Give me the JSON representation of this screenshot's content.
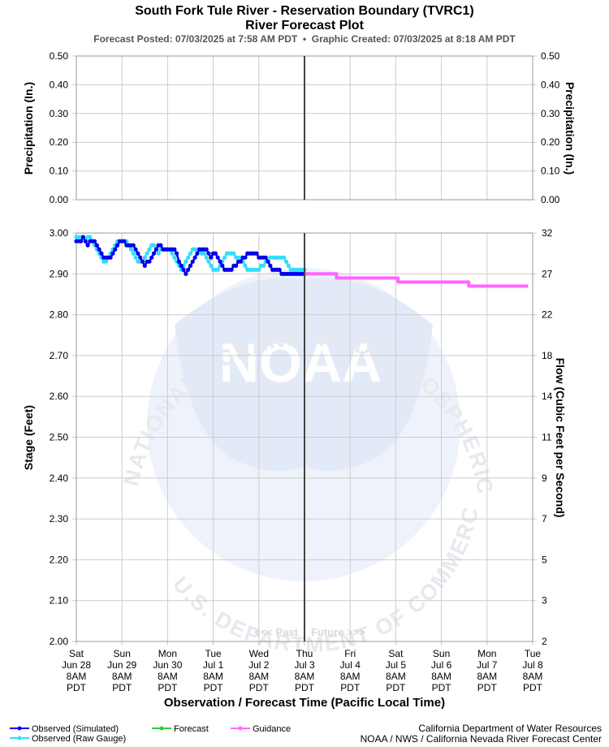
{
  "header": {
    "title": "South Fork Tule River - Reservation Boundary (TVRC1)",
    "subtitle": "River Forecast Plot",
    "posted": "Forecast Posted: 07/03/2025 at 7:58 AM PDT  •  Graphic Created: 07/03/2025 at 8:18 AM PDT"
  },
  "watermark": {
    "logo_text": "NOAA",
    "ring_text": "NATIONAL OCEANIC AND ATMOSPHERIC ADMINISTRATION",
    "ring_text_bottom": "U.S. DEPARTMENT OF COMMERCE"
  },
  "chart_data": [
    {
      "type": "line",
      "panel": "precipitation",
      "ylabel": "Precipitation (In.)",
      "ylabel_right": "Precipitation (In.)",
      "ylim": [
        0,
        0.5
      ],
      "yticks": [
        "0.00",
        "0.10",
        "0.20",
        "0.30",
        "0.40",
        "0.50"
      ],
      "yticks_right": [
        "0.00",
        "0.10",
        "0.20",
        "0.30",
        "0.40",
        "0.50"
      ],
      "grid": true,
      "series": [
        {
          "values_note": "",
          "x": [
            "2025-06-28 08:00",
            "2025-07-03 08:00"
          ],
          "y": [
            0.0,
            0.0
          ],
          "color": "#9999ee"
        }
      ]
    },
    {
      "type": "line",
      "panel": "stage",
      "xlabel": "Observation / Forecast Time (Pacific Local Time)",
      "ylabel": "Stage (Feet)",
      "ylabel_right": "Flow (Cubic Feet per Second)",
      "ylim": [
        2.0,
        3.0
      ],
      "yticks": [
        "2.00",
        "2.10",
        "2.20",
        "2.30",
        "2.40",
        "2.50",
        "2.60",
        "2.70",
        "2.80",
        "2.90",
        "3.00"
      ],
      "yticks_right": [
        "2",
        "3",
        "5",
        "7",
        "9",
        "11",
        "14",
        "18",
        "22",
        "27",
        "32"
      ],
      "xticks": [
        [
          "Sat",
          "Jun 28",
          "8AM",
          "PDT"
        ],
        [
          "Sun",
          "Jun 29",
          "8AM",
          "PDT"
        ],
        [
          "Mon",
          "Jun 30",
          "8AM",
          "PDT"
        ],
        [
          "Tue",
          "Jul 1",
          "8AM",
          "PDT"
        ],
        [
          "Wed",
          "Jul 2",
          "8AM",
          "PDT"
        ],
        [
          "Thu",
          "Jul 3",
          "8AM",
          "PDT"
        ],
        [
          "Fri",
          "Jul 4",
          "8AM",
          "PDT"
        ],
        [
          "Sat",
          "Jul 5",
          "8AM",
          "PDT"
        ],
        [
          "Sun",
          "Jul 6",
          "8AM",
          "PDT"
        ],
        [
          "Mon",
          "Jul 7",
          "8AM",
          "PDT"
        ],
        [
          "Tue",
          "Jul 8",
          "8AM",
          "PDT"
        ]
      ],
      "past_label": "<<< Past",
      "future_label": "Future >>>",
      "now_x": 5.0,
      "grid": true,
      "series": [
        {
          "name": "Observed (Raw Gauge)",
          "color": "#33ddff",
          "x": [
            0.0,
            0.05,
            0.1,
            0.15,
            0.2,
            0.25,
            0.3,
            0.35,
            0.4,
            0.45,
            0.5,
            0.55,
            0.6,
            0.65,
            0.7,
            0.75,
            0.8,
            0.85,
            0.9,
            0.95,
            1.0,
            1.05,
            1.1,
            1.15,
            1.2,
            1.25,
            1.3,
            1.35,
            1.4,
            1.45,
            1.5,
            1.55,
            1.6,
            1.65,
            1.7,
            1.75,
            1.8,
            1.85,
            1.9,
            1.95,
            2.0,
            2.05,
            2.1,
            2.15,
            2.2,
            2.25,
            2.3,
            2.35,
            2.4,
            2.45,
            2.5,
            2.55,
            2.6,
            2.65,
            2.7,
            2.75,
            2.8,
            2.85,
            2.9,
            2.95,
            3.0,
            3.05,
            3.1,
            3.15,
            3.2,
            3.25,
            3.3,
            3.35,
            3.4,
            3.45,
            3.5,
            3.55,
            3.6,
            3.65,
            3.7,
            3.75,
            3.8,
            3.85,
            3.9,
            3.95,
            4.0,
            4.05,
            4.1,
            4.15,
            4.2,
            4.25,
            4.3,
            4.35,
            4.4,
            4.45,
            4.5,
            4.55,
            4.6,
            4.65,
            4.7,
            4.75,
            4.8,
            4.85,
            4.9,
            4.95,
            5.0
          ],
          "y": [
            2.99,
            2.99,
            2.99,
            2.99,
            2.98,
            2.99,
            2.99,
            2.98,
            2.97,
            2.96,
            2.95,
            2.94,
            2.93,
            2.93,
            2.94,
            2.95,
            2.96,
            2.97,
            2.98,
            2.98,
            2.98,
            2.98,
            2.98,
            2.97,
            2.96,
            2.95,
            2.94,
            2.93,
            2.93,
            2.93,
            2.94,
            2.95,
            2.96,
            2.97,
            2.97,
            2.96,
            2.95,
            2.96,
            2.96,
            2.96,
            2.96,
            2.96,
            2.95,
            2.94,
            2.93,
            2.92,
            2.91,
            2.92,
            2.93,
            2.94,
            2.95,
            2.96,
            2.96,
            2.96,
            2.96,
            2.95,
            2.95,
            2.94,
            2.93,
            2.92,
            2.91,
            2.91,
            2.91,
            2.92,
            2.93,
            2.94,
            2.95,
            2.95,
            2.95,
            2.95,
            2.94,
            2.94,
            2.94,
            2.93,
            2.92,
            2.91,
            2.91,
            2.91,
            2.91,
            2.91,
            2.91,
            2.92,
            2.92,
            2.93,
            2.93,
            2.94,
            2.94,
            2.94,
            2.94,
            2.94,
            2.94,
            2.94,
            2.93,
            2.92,
            2.91,
            2.91,
            2.91,
            2.91,
            2.91,
            2.91,
            2.91
          ]
        },
        {
          "name": "Observed (Simulated)",
          "color": "#0000ee",
          "x": [
            0.0,
            0.05,
            0.1,
            0.15,
            0.2,
            0.25,
            0.3,
            0.35,
            0.4,
            0.45,
            0.5,
            0.55,
            0.6,
            0.65,
            0.7,
            0.75,
            0.8,
            0.85,
            0.9,
            0.95,
            1.0,
            1.05,
            1.1,
            1.15,
            1.2,
            1.25,
            1.3,
            1.35,
            1.4,
            1.45,
            1.5,
            1.55,
            1.6,
            1.65,
            1.7,
            1.75,
            1.8,
            1.85,
            1.9,
            1.95,
            2.0,
            2.05,
            2.1,
            2.15,
            2.2,
            2.25,
            2.3,
            2.35,
            2.4,
            2.45,
            2.5,
            2.55,
            2.6,
            2.65,
            2.7,
            2.75,
            2.8,
            2.85,
            2.9,
            2.95,
            3.0,
            3.05,
            3.1,
            3.15,
            3.2,
            3.25,
            3.3,
            3.35,
            3.4,
            3.45,
            3.5,
            3.55,
            3.6,
            3.65,
            3.7,
            3.75,
            3.8,
            3.85,
            3.9,
            3.95,
            4.0,
            4.05,
            4.1,
            4.15,
            4.2,
            4.25,
            4.3,
            4.35,
            4.4,
            4.45,
            4.5,
            4.55,
            4.6,
            4.65,
            4.7,
            4.75,
            4.8,
            4.85,
            4.9,
            4.95,
            5.0
          ],
          "y": [
            2.98,
            2.98,
            2.98,
            2.99,
            2.98,
            2.97,
            2.98,
            2.98,
            2.98,
            2.97,
            2.96,
            2.95,
            2.94,
            2.94,
            2.94,
            2.94,
            2.95,
            2.96,
            2.97,
            2.98,
            2.98,
            2.98,
            2.97,
            2.97,
            2.97,
            2.97,
            2.96,
            2.95,
            2.94,
            2.93,
            2.92,
            2.93,
            2.93,
            2.94,
            2.95,
            2.96,
            2.97,
            2.97,
            2.96,
            2.96,
            2.96,
            2.96,
            2.96,
            2.96,
            2.95,
            2.93,
            2.92,
            2.91,
            2.9,
            2.91,
            2.92,
            2.93,
            2.94,
            2.95,
            2.96,
            2.96,
            2.96,
            2.96,
            2.95,
            2.94,
            2.95,
            2.95,
            2.94,
            2.93,
            2.92,
            2.91,
            2.91,
            2.91,
            2.91,
            2.92,
            2.92,
            2.93,
            2.93,
            2.94,
            2.94,
            2.95,
            2.95,
            2.95,
            2.95,
            2.95,
            2.94,
            2.94,
            2.94,
            2.94,
            2.93,
            2.92,
            2.91,
            2.91,
            2.91,
            2.91,
            2.9,
            2.9,
            2.9,
            2.9,
            2.9,
            2.9,
            2.9,
            2.9,
            2.9,
            2.9,
            2.9
          ]
        },
        {
          "name": "Forecast",
          "color": "#33cc33",
          "x": [],
          "y": []
        },
        {
          "name": "Guidance",
          "color": "#ff66ff",
          "x": [
            5.0,
            5.7,
            5.7,
            7.05,
            7.05,
            8.6,
            8.6,
            9.9
          ],
          "y": [
            2.9,
            2.9,
            2.89,
            2.89,
            2.88,
            2.88,
            2.87,
            2.87
          ]
        }
      ]
    }
  ],
  "legend": {
    "items": [
      {
        "label": "Observed (Simulated)",
        "color": "#0000ee"
      },
      {
        "label": "Observed (Raw Gauge)",
        "color": "#33ddff"
      },
      {
        "label": "Forecast",
        "color": "#33cc33"
      },
      {
        "label": "Guidance",
        "color": "#ff66ff"
      }
    ]
  },
  "footer": {
    "line1": "California Department of Water Resources",
    "line2": "NOAA / NWS / California Nevada River Forecast Center"
  }
}
